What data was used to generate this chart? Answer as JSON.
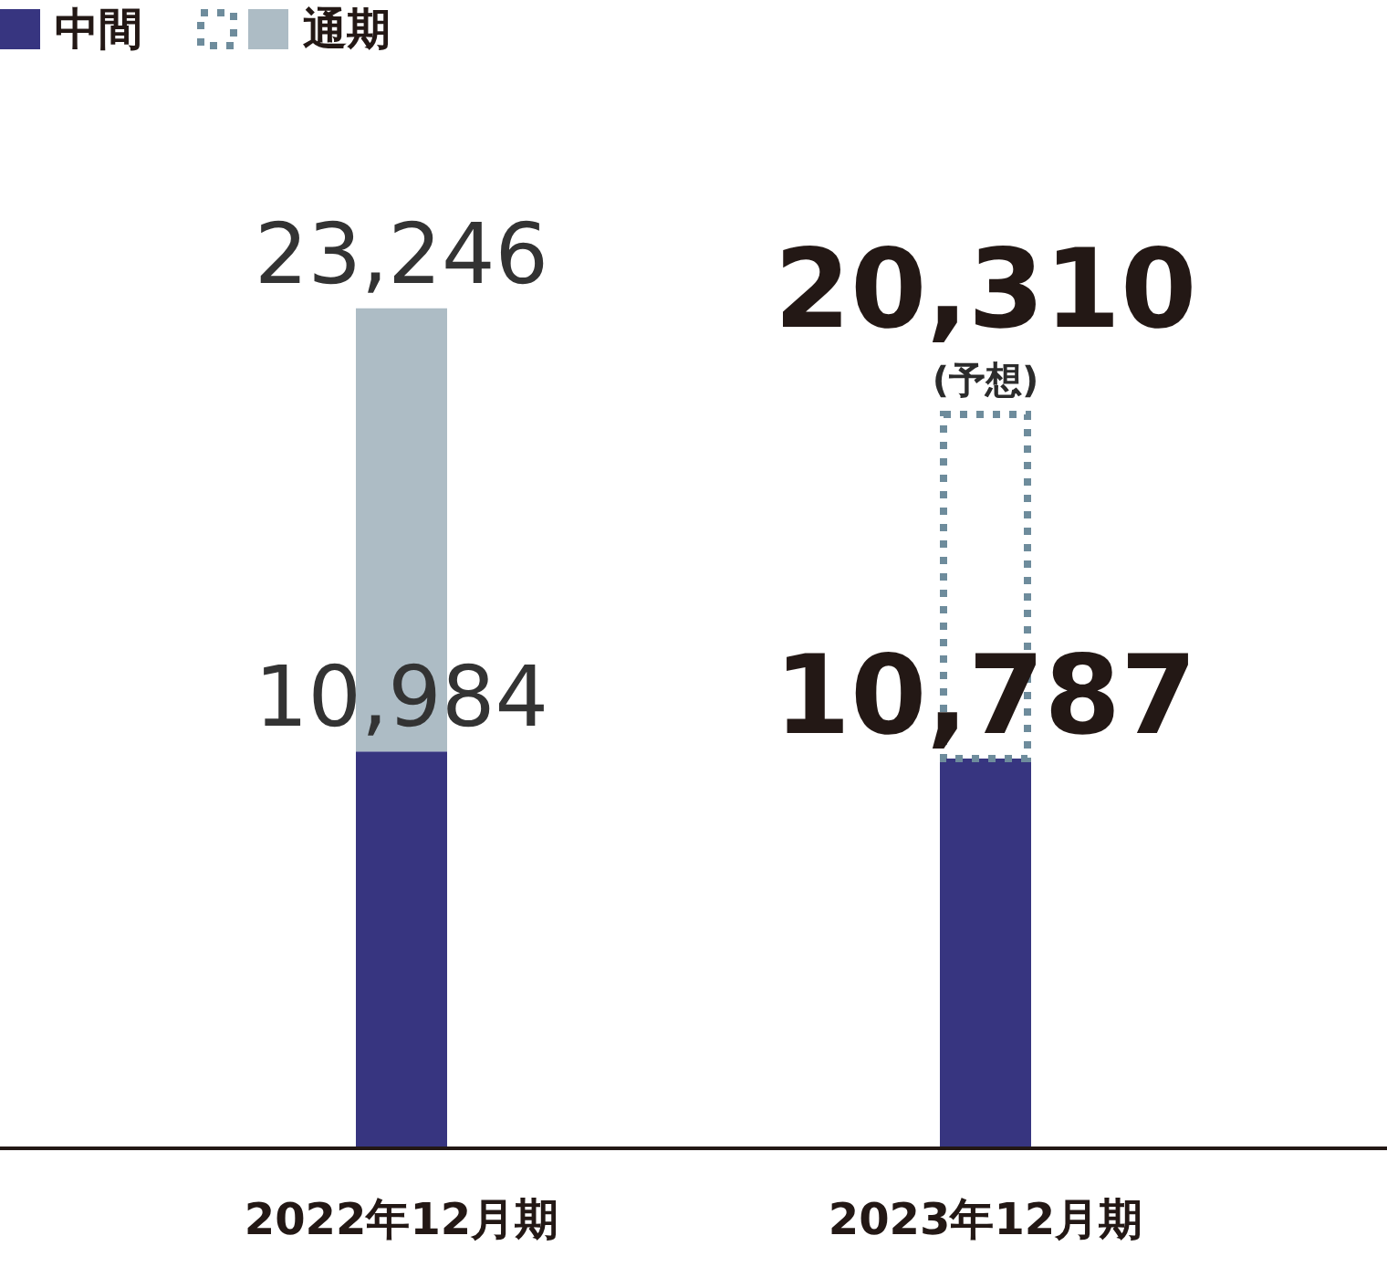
{
  "chart_data": {
    "type": "bar",
    "stacked": true,
    "categories": [
      "2022年12月期",
      "2023年12月期"
    ],
    "series": [
      {
        "name": "中間",
        "color": "#373580",
        "values": [
          10984,
          10787
        ],
        "value_labels": [
          "10,984",
          "10,787"
        ]
      },
      {
        "name": "通期",
        "color": "#adbcc5",
        "values": [
          12262,
          null
        ]
      },
      {
        "color": "#6e8c9c",
        "line_style": "dotted",
        "values": [
          null,
          9523
        ]
      }
    ],
    "totals": [
      "23,246",
      "20,310"
    ],
    "annotations": [
      {
        "text": "(予想)",
        "x": "2023年12月期",
        "y": 20310
      }
    ],
    "legend": "top left"
  }
}
